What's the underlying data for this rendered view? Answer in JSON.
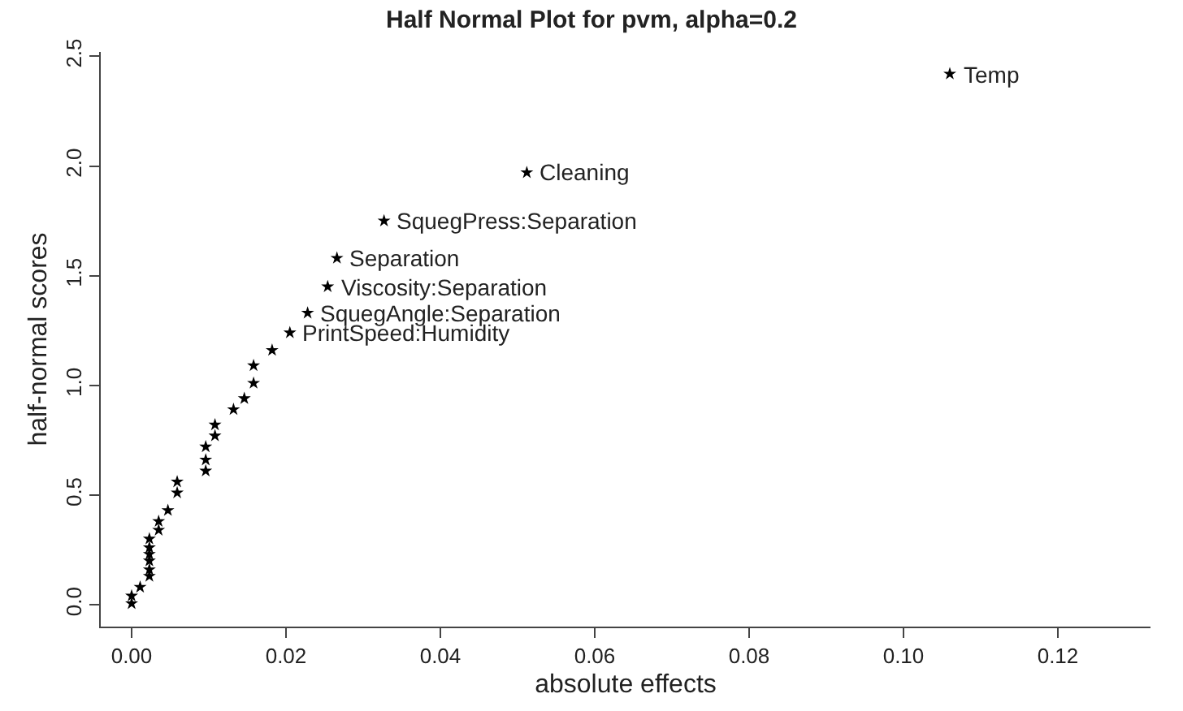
{
  "chart_data": {
    "type": "scatter",
    "title": "Half Normal Plot for pvm, alpha=0.2",
    "xlabel": "absolute effects",
    "ylabel": "half-normal scores",
    "x": [
      0.0,
      0.0,
      0.0011,
      0.0023,
      0.0023,
      0.0023,
      0.0023,
      0.0023,
      0.0023,
      0.0035,
      0.0035,
      0.0047,
      0.0059,
      0.0059,
      0.0096,
      0.0096,
      0.0096,
      0.0108,
      0.0108,
      0.0132,
      0.0146,
      0.0158,
      0.0158,
      0.0182,
      0.0205,
      0.0228,
      0.0254,
      0.0266,
      0.0327,
      0.0512,
      0.106
    ],
    "values": [
      0.005,
      0.04,
      0.08,
      0.13,
      0.16,
      0.2,
      0.23,
      0.26,
      0.3,
      0.34,
      0.38,
      0.43,
      0.51,
      0.56,
      0.61,
      0.66,
      0.72,
      0.77,
      0.82,
      0.89,
      0.94,
      1.01,
      1.09,
      1.16,
      1.24,
      1.33,
      1.45,
      1.58,
      1.75,
      1.97,
      2.42
    ],
    "color": "#000000",
    "marker": "star",
    "xlim": [
      -0.004,
      0.132
    ],
    "ylim": [
      -0.1,
      2.52
    ],
    "xticks": [
      {
        "value": 0,
        "label": "0.00"
      },
      {
        "value": 0.02,
        "label": "0.02"
      },
      {
        "value": 0.04,
        "label": "0.04"
      },
      {
        "value": 0.06,
        "label": "0.06"
      },
      {
        "value": 0.08,
        "label": "0.08"
      },
      {
        "value": 0.1,
        "label": "0.10"
      },
      {
        "value": 0.12,
        "label": "0.12"
      }
    ],
    "yticks": [
      {
        "value": 0,
        "label": "0.0"
      },
      {
        "value": 0.5,
        "label": "0.5"
      },
      {
        "value": 1,
        "label": "1.0"
      },
      {
        "value": 1.5,
        "label": "1.5"
      },
      {
        "value": 2,
        "label": "2.0"
      },
      {
        "value": 2.5,
        "label": "2.5"
      }
    ],
    "legend": false,
    "annotations": [
      {
        "text": "PrintSpeed:Humidity",
        "x": 0.0205,
        "y": 1.24
      },
      {
        "text": "SquegAngle:Separation",
        "x": 0.0228,
        "y": 1.33
      },
      {
        "text": "Viscosity:Separation",
        "x": 0.0254,
        "y": 1.45
      },
      {
        "text": "Separation",
        "x": 0.0266,
        "y": 1.58
      },
      {
        "text": "SquegPress:Separation",
        "x": 0.0327,
        "y": 1.75
      },
      {
        "text": "Cleaning",
        "x": 0.0512,
        "y": 1.97
      },
      {
        "text": "Temp",
        "x": 0.106,
        "y": 2.42
      }
    ]
  }
}
